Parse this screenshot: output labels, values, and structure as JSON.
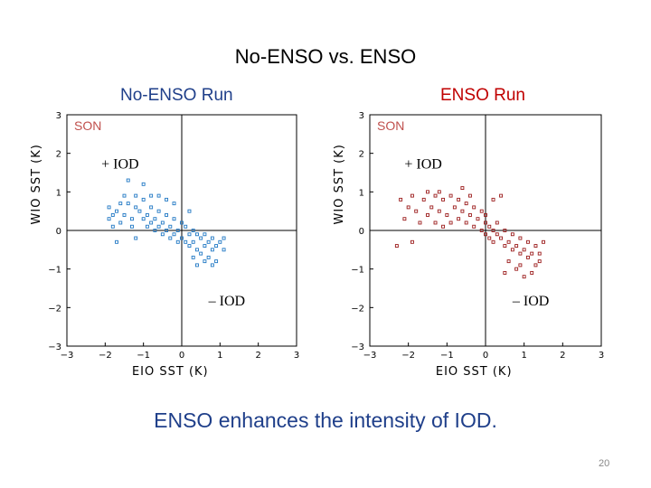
{
  "slide": {
    "title": "No-ENSO vs. ENSO",
    "footer": "ENSO enhances the intensity of IOD.",
    "page_number": "20"
  },
  "colors": {
    "title": "#000000",
    "footer": "#1f3f8a",
    "no_enso_title": "#1f3f8a",
    "enso_title": "#c00000",
    "no_enso_marker": "#1f77c4",
    "enso_marker": "#9b1b1b",
    "season_label": "#c0504d"
  },
  "chart_data": [
    {
      "type": "scatter",
      "title": "No-ENSO Run",
      "season": "SON",
      "xlabel": "EIO SST (K)",
      "ylabel": "WIO SST (K)",
      "xlim": [
        -3,
        3
      ],
      "ylim": [
        -3,
        3
      ],
      "xticks": [
        "−3",
        "−2",
        "−1",
        "0",
        "1",
        "2",
        "3"
      ],
      "yticks": [
        "3",
        "2",
        "1",
        "0",
        "−1",
        "−2",
        "−3"
      ],
      "annotations": [
        "+ IOD",
        "– IOD"
      ],
      "marker_color": "#1f77c4",
      "points": [
        [
          -1.9,
          0.6
        ],
        [
          -1.8,
          0.4
        ],
        [
          -1.9,
          0.3
        ],
        [
          -1.7,
          0.5
        ],
        [
          -1.6,
          0.2
        ],
        [
          -1.8,
          0.1
        ],
        [
          -1.5,
          0.9
        ],
        [
          -1.4,
          0.7
        ],
        [
          -1.5,
          0.4
        ],
        [
          -1.3,
          0.3
        ],
        [
          -1.2,
          0.6
        ],
        [
          -1.3,
          0.1
        ],
        [
          -1.1,
          0.5
        ],
        [
          -1.0,
          0.8
        ],
        [
          -1.0,
          0.3
        ],
        [
          -0.9,
          0.4
        ],
        [
          -0.9,
          0.1
        ],
        [
          -0.8,
          0.6
        ],
        [
          -0.8,
          0.2
        ],
        [
          -0.7,
          0.3
        ],
        [
          -0.7,
          0.0
        ],
        [
          -0.6,
          0.5
        ],
        [
          -0.6,
          0.1
        ],
        [
          -0.5,
          0.2
        ],
        [
          -0.5,
          -0.1
        ],
        [
          -0.4,
          0.4
        ],
        [
          -0.4,
          0.0
        ],
        [
          -0.3,
          0.1
        ],
        [
          -0.3,
          -0.2
        ],
        [
          -0.2,
          0.3
        ],
        [
          -0.2,
          -0.1
        ],
        [
          -0.1,
          0.0
        ],
        [
          -0.1,
          -0.3
        ],
        [
          0.0,
          0.2
        ],
        [
          0.0,
          -0.2
        ],
        [
          0.1,
          0.1
        ],
        [
          0.1,
          -0.3
        ],
        [
          0.2,
          -0.1
        ],
        [
          0.2,
          -0.4
        ],
        [
          0.3,
          0.0
        ],
        [
          0.3,
          -0.3
        ],
        [
          0.4,
          -0.1
        ],
        [
          0.4,
          -0.5
        ],
        [
          0.5,
          -0.2
        ],
        [
          0.5,
          -0.6
        ],
        [
          0.6,
          -0.1
        ],
        [
          0.6,
          -0.4
        ],
        [
          0.7,
          -0.3
        ],
        [
          0.7,
          -0.7
        ],
        [
          0.8,
          -0.2
        ],
        [
          0.8,
          -0.5
        ],
        [
          0.9,
          -0.4
        ],
        [
          0.9,
          -0.8
        ],
        [
          1.0,
          -0.3
        ],
        [
          -1.4,
          1.3
        ],
        [
          -1.0,
          1.2
        ],
        [
          -0.6,
          0.9
        ],
        [
          -0.2,
          0.7
        ],
        [
          0.2,
          0.5
        ],
        [
          -1.7,
          -0.3
        ],
        [
          -1.2,
          -0.2
        ],
        [
          0.4,
          -0.9
        ],
        [
          0.6,
          -0.8
        ],
        [
          0.3,
          -0.7
        ],
        [
          0.8,
          -0.9
        ],
        [
          1.1,
          -0.2
        ],
        [
          1.1,
          -0.5
        ],
        [
          -0.8,
          0.9
        ],
        [
          -1.2,
          0.9
        ],
        [
          -1.6,
          0.7
        ],
        [
          -0.4,
          0.8
        ]
      ]
    },
    {
      "type": "scatter",
      "title": "ENSO Run",
      "season": "SON",
      "xlabel": "EIO SST (K)",
      "ylabel": "WIO SST (K)",
      "xlim": [
        -3,
        3
      ],
      "ylim": [
        -3,
        3
      ],
      "xticks": [
        "−3",
        "−2",
        "−1",
        "0",
        "1",
        "2",
        "3"
      ],
      "yticks": [
        "3",
        "2",
        "1",
        "0",
        "−1",
        "−2",
        "−3"
      ],
      "annotations": [
        "+ IOD",
        "– IOD"
      ],
      "marker_color": "#9b1b1b",
      "points": [
        [
          -2.2,
          0.8
        ],
        [
          -2.0,
          0.6
        ],
        [
          -2.1,
          0.3
        ],
        [
          -1.9,
          0.9
        ],
        [
          -1.8,
          0.5
        ],
        [
          -1.7,
          0.2
        ],
        [
          -1.6,
          0.8
        ],
        [
          -1.5,
          1.0
        ],
        [
          -1.5,
          0.4
        ],
        [
          -1.4,
          0.6
        ],
        [
          -1.3,
          0.9
        ],
        [
          -1.3,
          0.2
        ],
        [
          -1.2,
          0.5
        ],
        [
          -1.1,
          0.8
        ],
        [
          -1.1,
          0.1
        ],
        [
          -1.0,
          0.4
        ],
        [
          -0.9,
          0.9
        ],
        [
          -0.9,
          0.2
        ],
        [
          -0.8,
          0.6
        ],
        [
          -0.7,
          0.3
        ],
        [
          -0.7,
          0.8
        ],
        [
          -0.6,
          0.5
        ],
        [
          -0.5,
          0.2
        ],
        [
          -0.5,
          0.7
        ],
        [
          -0.4,
          0.4
        ],
        [
          -0.3,
          0.1
        ],
        [
          -0.3,
          0.6
        ],
        [
          -0.2,
          0.3
        ],
        [
          -0.1,
          0.0
        ],
        [
          -0.1,
          0.5
        ],
        [
          0.0,
          0.2
        ],
        [
          0.0,
          -0.1
        ],
        [
          0.1,
          0.1
        ],
        [
          0.1,
          -0.2
        ],
        [
          0.2,
          0.0
        ],
        [
          0.2,
          -0.3
        ],
        [
          0.3,
          -0.1
        ],
        [
          0.3,
          0.2
        ],
        [
          0.4,
          -0.2
        ],
        [
          0.5,
          -0.4
        ],
        [
          0.5,
          0.0
        ],
        [
          0.6,
          -0.3
        ],
        [
          0.7,
          -0.5
        ],
        [
          0.7,
          -0.1
        ],
        [
          0.8,
          -0.4
        ],
        [
          0.9,
          -0.6
        ],
        [
          0.9,
          -0.2
        ],
        [
          1.0,
          -0.5
        ],
        [
          1.1,
          -0.7
        ],
        [
          1.1,
          -0.3
        ],
        [
          1.2,
          -0.6
        ],
        [
          1.3,
          -0.4
        ],
        [
          1.3,
          -0.9
        ],
        [
          1.4,
          -0.6
        ],
        [
          1.5,
          -0.3
        ],
        [
          0.5,
          -1.1
        ],
        [
          0.8,
          -1.0
        ],
        [
          1.0,
          -1.2
        ],
        [
          1.2,
          -1.1
        ],
        [
          0.6,
          -0.8
        ],
        [
          -0.6,
          1.1
        ],
        [
          -1.2,
          1.0
        ],
        [
          0.2,
          0.8
        ],
        [
          0.4,
          0.9
        ],
        [
          -2.3,
          -0.4
        ],
        [
          -1.9,
          -0.3
        ],
        [
          0.0,
          0.4
        ],
        [
          -0.4,
          0.9
        ],
        [
          0.9,
          -0.9
        ],
        [
          1.4,
          -0.8
        ]
      ]
    }
  ]
}
